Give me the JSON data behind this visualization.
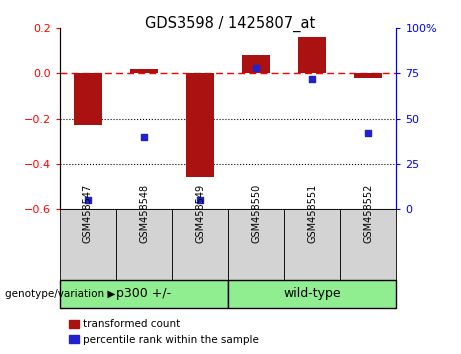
{
  "title": "GDS3598 / 1425807_at",
  "samples": [
    "GSM458547",
    "GSM458548",
    "GSM458549",
    "GSM458550",
    "GSM458551",
    "GSM458552"
  ],
  "red_values": [
    -0.23,
    0.02,
    -0.46,
    0.08,
    0.16,
    -0.02
  ],
  "blue_values_pct": [
    5,
    40,
    5,
    78,
    72,
    42
  ],
  "group1_label": "p300 +/-",
  "group1_indices": [
    0,
    1,
    2
  ],
  "group2_label": "wild-type",
  "group2_indices": [
    3,
    4,
    5
  ],
  "genotype_label": "genotype/variation",
  "legend1": "transformed count",
  "legend2": "percentile rank within the sample",
  "ylim_left": [
    -0.6,
    0.2
  ],
  "ylim_right": [
    0,
    100
  ],
  "hline_y": 0,
  "dotted_lines": [
    -0.2,
    -0.4
  ],
  "bar_color": "#AA1111",
  "dot_color": "#2222CC",
  "group_bg_color": "#90EE90",
  "sample_bg_color": "#D3D3D3",
  "fig_bg_color": "#FFFFFF"
}
